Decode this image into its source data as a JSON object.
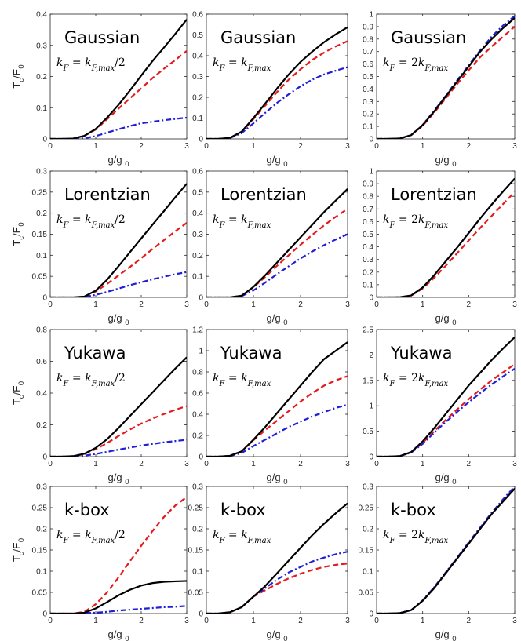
{
  "figure": {
    "xlabel": "g/g",
    "xlabel_sub": "0",
    "ylabel": "T",
    "ylabel_sub1": "c",
    "ylabel_mid": "/E",
    "ylabel_sub2": "0"
  },
  "series_style": [
    {
      "color": "#000000",
      "dash": "solid"
    },
    {
      "color": "#e41a1c",
      "dash": "dashed"
    },
    {
      "color": "#1f1fd6",
      "dash": "dashdot"
    }
  ],
  "chart_data": [
    {
      "type": "line",
      "title": "Gaussian",
      "annotation": "k_F = k_F,max/2",
      "ylim": [
        0,
        0.4
      ],
      "yticks": [
        "0",
        "0.1",
        "0.2",
        "0.3",
        "0.4"
      ],
      "xlim": [
        0,
        3
      ],
      "xticks": [
        "0",
        "1",
        "2",
        "3"
      ],
      "x": [
        0,
        0.25,
        0.5,
        0.75,
        1,
        1.25,
        1.5,
        1.75,
        2,
        2.25,
        2.5,
        2.75,
        3
      ],
      "series": [
        {
          "values": [
            0,
            0,
            0.001,
            0.01,
            0.032,
            0.068,
            0.109,
            0.155,
            0.203,
            0.25,
            0.293,
            0.337,
            0.383
          ]
        },
        {
          "values": [
            0,
            0,
            0.001,
            0.01,
            0.03,
            0.063,
            0.097,
            0.13,
            0.162,
            0.195,
            0.225,
            0.253,
            0.282
          ]
        },
        {
          "values": [
            0,
            0,
            0,
            0.002,
            0.009,
            0.02,
            0.031,
            0.041,
            0.05,
            0.055,
            0.06,
            0.064,
            0.068
          ]
        }
      ]
    },
    {
      "type": "line",
      "title": "Gaussian",
      "annotation": "k_F = k_F,max",
      "ylim": [
        0,
        0.6
      ],
      "yticks": [
        "0",
        "0.1",
        "0.2",
        "0.3",
        "0.4",
        "0.5",
        "0.6"
      ],
      "xlim": [
        0,
        3
      ],
      "xticks": [
        "0",
        "1",
        "2",
        "3"
      ],
      "x": [
        0,
        0.25,
        0.5,
        0.75,
        1,
        1.25,
        1.5,
        1.75,
        2,
        2.25,
        2.5,
        2.75,
        3
      ],
      "series": [
        {
          "values": [
            0,
            0,
            0.005,
            0.035,
            0.1,
            0.17,
            0.242,
            0.31,
            0.37,
            0.42,
            0.465,
            0.503,
            0.537
          ]
        },
        {
          "values": [
            0,
            0,
            0.005,
            0.034,
            0.095,
            0.16,
            0.225,
            0.285,
            0.335,
            0.38,
            0.415,
            0.445,
            0.47
          ]
        },
        {
          "values": [
            0,
            0,
            0.004,
            0.028,
            0.075,
            0.125,
            0.173,
            0.215,
            0.253,
            0.285,
            0.31,
            0.328,
            0.345
          ]
        }
      ]
    },
    {
      "type": "line",
      "title": "Gaussian",
      "annotation": "k_F = 2k_F,max",
      "ylim": [
        0,
        1
      ],
      "yticks": [
        "0",
        "0.1",
        "0.2",
        "0.3",
        "0.4",
        "0.5",
        "0.6",
        "0.7",
        "0.8",
        "0.9",
        "1"
      ],
      "xlim": [
        0,
        3
      ],
      "xticks": [
        "0",
        "1",
        "2",
        "3"
      ],
      "x": [
        0,
        0.25,
        0.5,
        0.75,
        1,
        1.25,
        1.5,
        1.75,
        2,
        2.25,
        2.5,
        2.75,
        3
      ],
      "series": [
        {
          "values": [
            0,
            0,
            0.003,
            0.03,
            0.11,
            0.22,
            0.34,
            0.46,
            0.58,
            0.7,
            0.8,
            0.89,
            0.97
          ]
        },
        {
          "values": [
            0,
            0,
            0.003,
            0.03,
            0.105,
            0.21,
            0.325,
            0.44,
            0.55,
            0.655,
            0.74,
            0.82,
            0.9
          ]
        },
        {
          "values": [
            0,
            0,
            0.003,
            0.031,
            0.112,
            0.225,
            0.345,
            0.47,
            0.59,
            0.71,
            0.82,
            0.91,
            0.985
          ]
        }
      ]
    },
    {
      "type": "line",
      "title": "Lorentzian",
      "annotation": "k_F = k_F,max/2",
      "ylim": [
        0,
        0.3
      ],
      "yticks": [
        "0",
        "0.05",
        "0.1",
        "0.15",
        "0.2",
        "0.25",
        "0.3"
      ],
      "xlim": [
        0,
        3
      ],
      "xticks": [
        "0",
        "1",
        "2",
        "3"
      ],
      "x": [
        0,
        0.25,
        0.5,
        0.75,
        1,
        1.25,
        1.5,
        1.75,
        2,
        2.25,
        2.5,
        2.75,
        3
      ],
      "series": [
        {
          "values": [
            0,
            0,
            0,
            0.002,
            0.016,
            0.042,
            0.074,
            0.107,
            0.14,
            0.173,
            0.205,
            0.238,
            0.27
          ]
        },
        {
          "values": [
            0,
            0,
            0,
            0.002,
            0.014,
            0.032,
            0.052,
            0.072,
            0.093,
            0.115,
            0.136,
            0.157,
            0.177
          ]
        },
        {
          "values": [
            0,
            0,
            0,
            0.001,
            0.006,
            0.013,
            0.021,
            0.029,
            0.036,
            0.043,
            0.049,
            0.055,
            0.06
          ]
        }
      ]
    },
    {
      "type": "line",
      "title": "Lorentzian",
      "annotation": "k_F = k_F,max",
      "ylim": [
        0,
        0.6
      ],
      "yticks": [
        "0",
        "0.1",
        "0.2",
        "0.3",
        "0.4",
        "0.5",
        "0.6"
      ],
      "xlim": [
        0,
        3
      ],
      "xticks": [
        "0",
        "1",
        "2",
        "3"
      ],
      "x": [
        0,
        0.25,
        0.5,
        0.75,
        1,
        1.25,
        1.5,
        1.75,
        2,
        2.25,
        2.5,
        2.75,
        3
      ],
      "series": [
        {
          "values": [
            0,
            0,
            0,
            0.008,
            0.05,
            0.105,
            0.165,
            0.225,
            0.285,
            0.345,
            0.405,
            0.46,
            0.515
          ]
        },
        {
          "values": [
            0,
            0,
            0,
            0.008,
            0.048,
            0.097,
            0.15,
            0.2,
            0.25,
            0.297,
            0.342,
            0.383,
            0.42
          ]
        },
        {
          "values": [
            0,
            0,
            0,
            0.006,
            0.033,
            0.07,
            0.11,
            0.148,
            0.185,
            0.218,
            0.248,
            0.275,
            0.3
          ]
        }
      ]
    },
    {
      "type": "line",
      "title": "Lorentzian",
      "annotation": "k_F = 2k_F,max",
      "ylim": [
        0,
        1
      ],
      "yticks": [
        "0",
        "0.1",
        "0.2",
        "0.3",
        "0.4",
        "0.5",
        "0.6",
        "0.7",
        "0.8",
        "0.9",
        "1"
      ],
      "xlim": [
        0,
        3
      ],
      "xticks": [
        "0",
        "1",
        "2",
        "3"
      ],
      "x": [
        0,
        0.25,
        0.5,
        0.75,
        1,
        1.25,
        1.5,
        1.75,
        2,
        2.25,
        2.5,
        2.75,
        3
      ],
      "series": [
        {
          "values": [
            0,
            0,
            0.001,
            0.015,
            0.078,
            0.175,
            0.285,
            0.395,
            0.51,
            0.625,
            0.735,
            0.84,
            0.94
          ]
        },
        {
          "values": [
            0,
            0,
            0.001,
            0.014,
            0.07,
            0.155,
            0.25,
            0.35,
            0.45,
            0.55,
            0.645,
            0.74,
            0.835
          ]
        },
        {
          "values": [
            0,
            0,
            0.001,
            0.015,
            0.078,
            0.175,
            0.285,
            0.395,
            0.51,
            0.625,
            0.735,
            0.84,
            0.94
          ]
        }
      ]
    },
    {
      "type": "line",
      "title": "Yukawa",
      "annotation": "k_F = k_F,max/2",
      "ylim": [
        0,
        0.8
      ],
      "yticks": [
        "0",
        "0.2",
        "0.4",
        "0.6",
        "0.8"
      ],
      "xlim": [
        0,
        3
      ],
      "xticks": [
        "0",
        "1",
        "2",
        "3"
      ],
      "x": [
        0,
        0.25,
        0.5,
        0.75,
        1,
        1.25,
        1.5,
        1.75,
        2,
        2.25,
        2.5,
        2.75,
        3
      ],
      "series": [
        {
          "values": [
            0,
            0,
            0.003,
            0.018,
            0.055,
            0.11,
            0.18,
            0.255,
            0.33,
            0.405,
            0.48,
            0.555,
            0.625
          ]
        },
        {
          "values": [
            0,
            0,
            0.003,
            0.016,
            0.047,
            0.085,
            0.13,
            0.17,
            0.208,
            0.24,
            0.268,
            0.295,
            0.318
          ]
        },
        {
          "values": [
            0,
            0,
            0.001,
            0.006,
            0.017,
            0.03,
            0.044,
            0.057,
            0.07,
            0.08,
            0.09,
            0.098,
            0.106
          ]
        }
      ]
    },
    {
      "type": "line",
      "title": "Yukawa",
      "annotation": "k_F = k_F,max",
      "ylim": [
        0,
        1.2
      ],
      "yticks": [
        "0",
        "0.2",
        "0.4",
        "0.6",
        "0.8",
        "1",
        "1.2"
      ],
      "xlim": [
        0,
        3
      ],
      "xticks": [
        "0",
        "1",
        "2",
        "3"
      ],
      "x": [
        0,
        0.25,
        0.5,
        0.75,
        1,
        1.25,
        1.5,
        1.75,
        2,
        2.25,
        2.5,
        2.75,
        3
      ],
      "series": [
        {
          "values": [
            0,
            0,
            0.008,
            0.05,
            0.16,
            0.28,
            0.41,
            0.54,
            0.67,
            0.8,
            0.92,
            1.0,
            1.08
          ]
        },
        {
          "values": [
            0,
            0,
            0.008,
            0.05,
            0.155,
            0.25,
            0.34,
            0.43,
            0.52,
            0.6,
            0.67,
            0.72,
            0.76
          ]
        },
        {
          "values": [
            0,
            0,
            0.006,
            0.035,
            0.1,
            0.16,
            0.22,
            0.28,
            0.33,
            0.38,
            0.42,
            0.46,
            0.49
          ]
        }
      ]
    },
    {
      "type": "line",
      "title": "Yukawa",
      "annotation": "k_F = 2k_F,max",
      "ylim": [
        0,
        2.5
      ],
      "yticks": [
        "0",
        "0.5",
        "1",
        "1.5",
        "2",
        "2.5"
      ],
      "xlim": [
        0,
        3
      ],
      "xticks": [
        "0",
        "1",
        "2",
        "3"
      ],
      "x": [
        0,
        0.25,
        0.5,
        0.75,
        1,
        1.25,
        1.5,
        1.75,
        2,
        2.25,
        2.5,
        2.75,
        3
      ],
      "series": [
        {
          "values": [
            0,
            0,
            0.01,
            0.09,
            0.3,
            0.56,
            0.84,
            1.12,
            1.4,
            1.65,
            1.9,
            2.13,
            2.35
          ]
        },
        {
          "values": [
            0,
            0,
            0.01,
            0.085,
            0.27,
            0.5,
            0.72,
            0.93,
            1.13,
            1.32,
            1.5,
            1.66,
            1.82
          ]
        },
        {
          "values": [
            0,
            0,
            0.01,
            0.08,
            0.25,
            0.47,
            0.68,
            0.88,
            1.07,
            1.25,
            1.42,
            1.58,
            1.73
          ]
        }
      ]
    },
    {
      "type": "line",
      "title": "k-box",
      "annotation": "k_F = k_F,max/2",
      "ylim": [
        0,
        0.3
      ],
      "yticks": [
        "0",
        "0.05",
        "0.1",
        "0.15",
        "0.2",
        "0.25",
        "0.3"
      ],
      "xlim": [
        0,
        3
      ],
      "xticks": [
        "0",
        "1",
        "2",
        "3"
      ],
      "x": [
        0,
        0.25,
        0.5,
        0.75,
        1,
        1.25,
        1.5,
        1.75,
        2,
        2.25,
        2.5,
        2.75,
        3
      ],
      "series": [
        {
          "values": [
            0,
            0,
            0,
            0.002,
            0.012,
            0.027,
            0.043,
            0.056,
            0.066,
            0.072,
            0.075,
            0.076,
            0.077
          ]
        },
        {
          "values": [
            0,
            0,
            0,
            0.004,
            0.022,
            0.05,
            0.085,
            0.123,
            0.16,
            0.195,
            0.228,
            0.255,
            0.275
          ]
        },
        {
          "values": [
            0,
            0,
            0,
            0.001,
            0.002,
            0.004,
            0.007,
            0.009,
            0.011,
            0.013,
            0.015,
            0.016,
            0.018
          ]
        }
      ]
    },
    {
      "type": "line",
      "title": "k-box",
      "annotation": "k_F = k_F,max",
      "ylim": [
        0,
        0.3
      ],
      "yticks": [
        "0",
        "0.05",
        "0.1",
        "0.15",
        "0.2",
        "0.25",
        "0.3"
      ],
      "xlim": [
        0,
        3
      ],
      "xticks": [
        "0",
        "1",
        "2",
        "3"
      ],
      "x": [
        0,
        0.25,
        0.5,
        0.75,
        1,
        1.25,
        1.5,
        1.75,
        2,
        2.25,
        2.5,
        2.75,
        3
      ],
      "series": [
        {
          "values": [
            0,
            0,
            0.003,
            0.015,
            0.04,
            0.065,
            0.095,
            0.125,
            0.155,
            0.185,
            0.212,
            0.237,
            0.26
          ]
        },
        {
          "values": [
            0,
            0,
            0.003,
            0.015,
            0.04,
            0.055,
            0.07,
            0.083,
            0.094,
            0.103,
            0.11,
            0.115,
            0.118
          ]
        },
        {
          "values": [
            0,
            0,
            0.003,
            0.015,
            0.04,
            0.06,
            0.08,
            0.097,
            0.11,
            0.123,
            0.132,
            0.14,
            0.146
          ]
        }
      ]
    },
    {
      "type": "line",
      "title": "k-box",
      "annotation": "k_F = 2k_F,max",
      "ylim": [
        0,
        0.3
      ],
      "yticks": [
        "0",
        "0.05",
        "0.1",
        "0.15",
        "0.2",
        "0.25",
        "0.3"
      ],
      "xlim": [
        0,
        3
      ],
      "xticks": [
        "0",
        "1",
        "2",
        "3"
      ],
      "x": [
        0,
        0.25,
        0.5,
        0.75,
        1,
        1.25,
        1.5,
        1.75,
        2,
        2.25,
        2.5,
        2.75,
        3
      ],
      "series": [
        {
          "values": [
            0,
            0,
            0.001,
            0.008,
            0.03,
            0.06,
            0.095,
            0.13,
            0.165,
            0.2,
            0.235,
            0.265,
            0.295
          ]
        },
        {
          "values": [
            0,
            0,
            0.001,
            0.008,
            0.03,
            0.06,
            0.095,
            0.13,
            0.165,
            0.2,
            0.235,
            0.265,
            0.295
          ]
        },
        {
          "values": [
            0,
            0,
            0.001,
            0.008,
            0.031,
            0.062,
            0.097,
            0.132,
            0.168,
            0.203,
            0.238,
            0.27,
            0.3
          ]
        }
      ]
    }
  ]
}
